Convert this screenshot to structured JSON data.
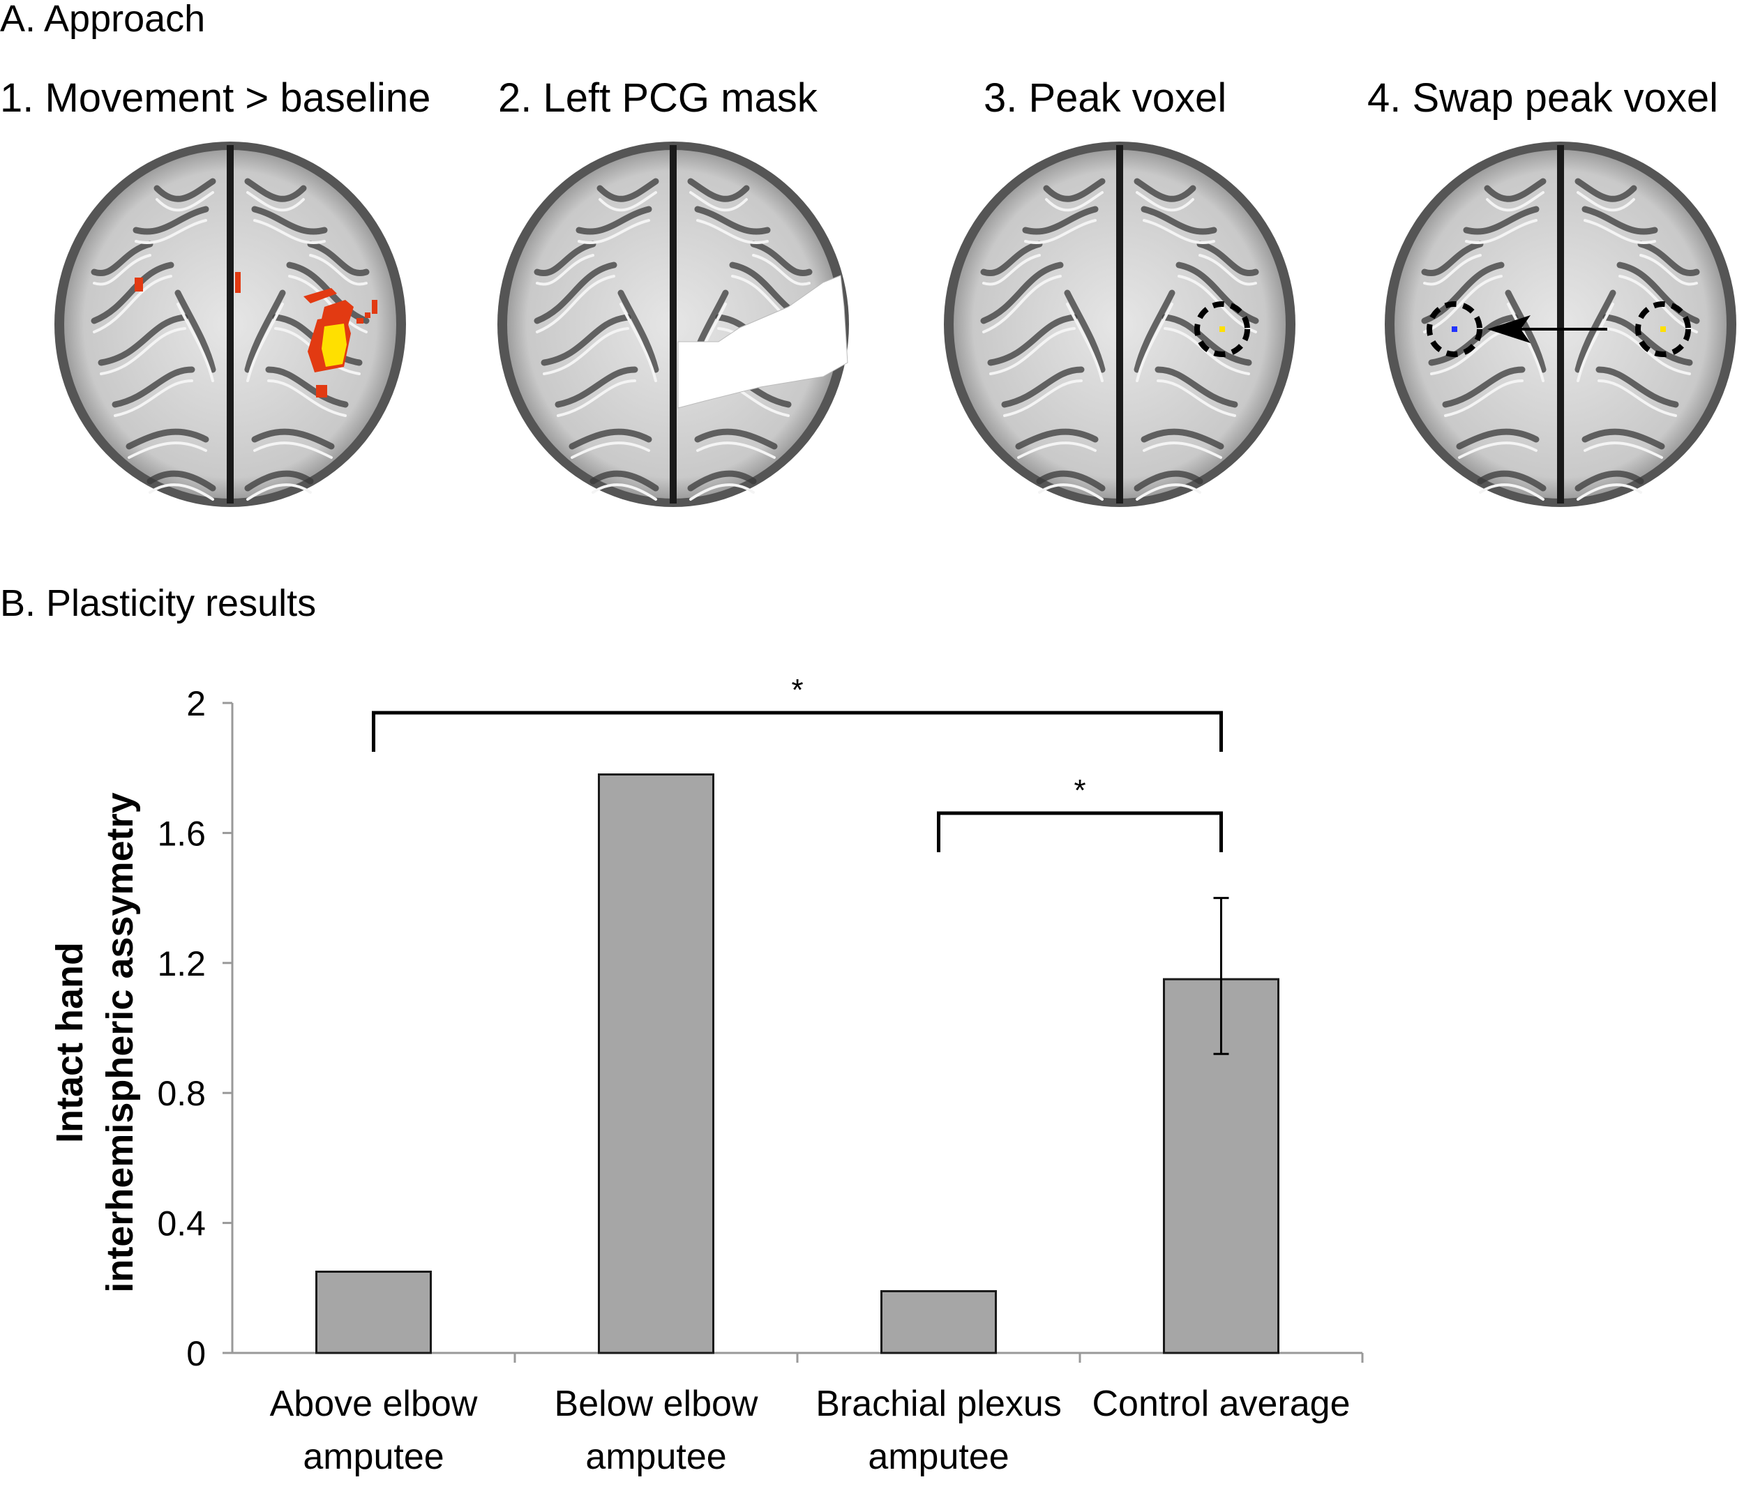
{
  "section_a": {
    "title": "A. Approach"
  },
  "section_b": {
    "title": "B. Plasticity results"
  },
  "panels": [
    {
      "label": "1. Movement > baseline"
    },
    {
      "label": "2. Left PCG mask"
    },
    {
      "label": "3. Peak voxel"
    },
    {
      "label": "4. Swap peak voxel"
    }
  ],
  "colors": {
    "bar_fill": "#a6a6a6",
    "bar_stroke": "#1a1a1a",
    "activation_red": "#e23a12",
    "activation_yellow": "#ffe000",
    "mask_white": "#ffffff",
    "swapped_voxel_blue": "#2233ff"
  },
  "chart_data": {
    "type": "bar",
    "categories": [
      [
        "Above elbow",
        "amputee"
      ],
      [
        "Below elbow",
        "amputee"
      ],
      [
        "Brachial plexus",
        "amputee"
      ],
      [
        "Control average"
      ]
    ],
    "values": [
      0.25,
      1.78,
      0.19,
      1.15
    ],
    "error_bars": [
      null,
      null,
      null,
      {
        "low": 0.92,
        "high": 1.4
      }
    ],
    "ylabel_lines": [
      "Intact hand",
      "interhemispheric assymetry"
    ],
    "ylim": [
      0,
      2
    ],
    "yticks": [
      0,
      0.4,
      0.8,
      1.2,
      1.6,
      2
    ],
    "ytick_labels": [
      "0",
      "0.4",
      "0.8",
      "1.2",
      "1.6",
      "2"
    ],
    "grid": false,
    "significance": [
      {
        "from": 0,
        "to": 3,
        "label": "*"
      },
      {
        "from": 2,
        "to": 3,
        "label": "*"
      }
    ]
  }
}
